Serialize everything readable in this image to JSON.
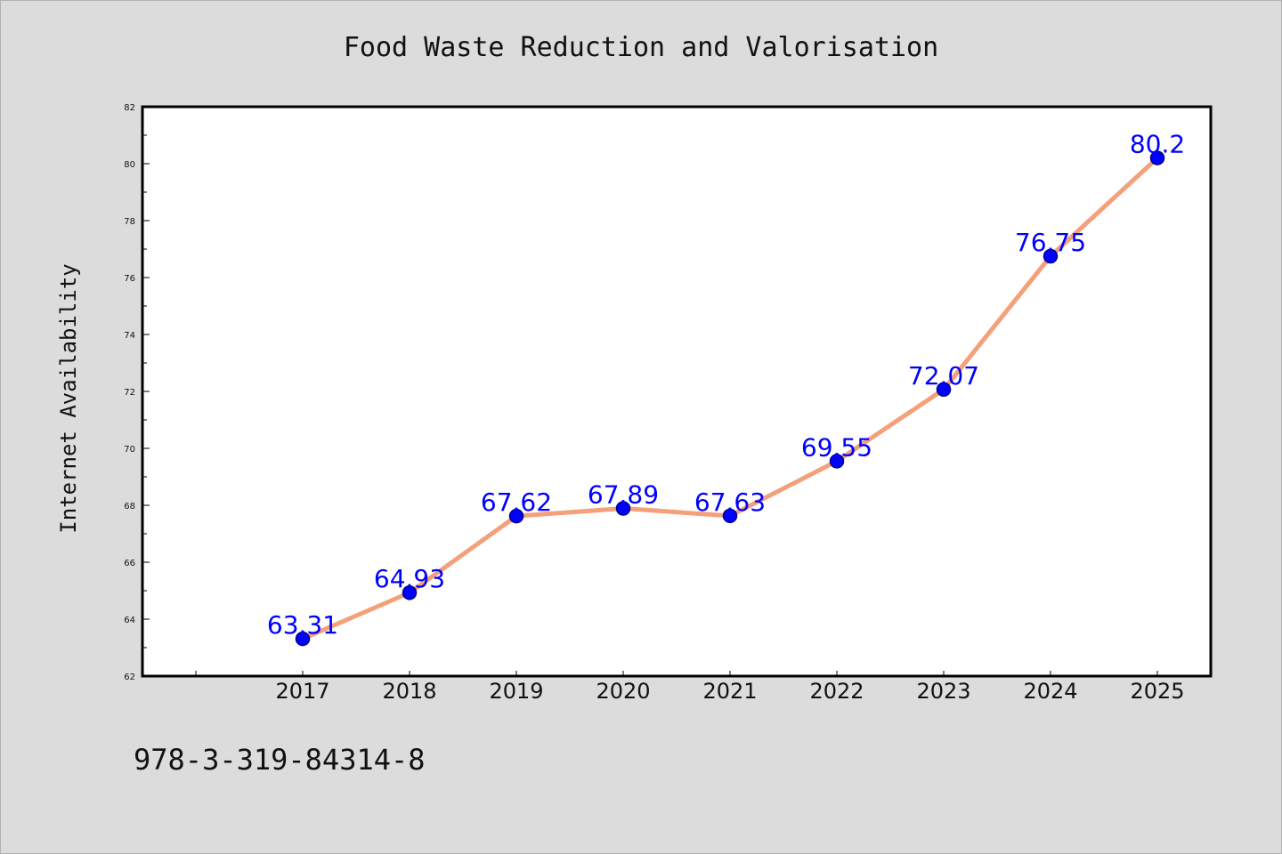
{
  "chart_data": {
    "type": "line",
    "title": "Food Waste Reduction and Valorisation",
    "xlabel": "",
    "ylabel": "Internet Availability",
    "categories": [
      "2017",
      "2018",
      "2019",
      "2020",
      "2021",
      "2022",
      "2023",
      "2024",
      "2025"
    ],
    "series": [
      {
        "values": [
          63.31,
          64.93,
          67.62,
          67.89,
          67.63,
          69.55,
          72.07,
          76.75,
          80.2
        ],
        "line_color": "#f4a07a",
        "marker_color": "#0000ff"
      }
    ],
    "data_labels": [
      "63.31",
      "64.93",
      "67.62",
      "67.89",
      "67.63",
      "69.55",
      "72.07",
      "76.75",
      "80.2"
    ],
    "ylim": [
      62,
      82
    ],
    "yticks": [
      "62",
      "64",
      "66",
      "68",
      "70",
      "72",
      "74",
      "76",
      "78",
      "80",
      "82"
    ],
    "grid": false,
    "legend": "none",
    "data_label_color": "#0000ff"
  },
  "caption": "978-3-319-84314-8"
}
